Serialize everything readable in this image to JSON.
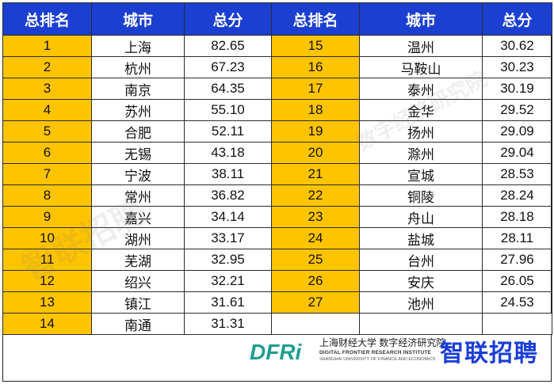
{
  "headers": [
    "总排名",
    "城市",
    "总分",
    "总排名",
    "城市",
    "总分"
  ],
  "left_rows": [
    {
      "rank": "1",
      "city": "上海",
      "score": "82.65"
    },
    {
      "rank": "2",
      "city": "杭州",
      "score": "67.23"
    },
    {
      "rank": "3",
      "city": "南京",
      "score": "64.35"
    },
    {
      "rank": "4",
      "city": "苏州",
      "score": "55.10"
    },
    {
      "rank": "5",
      "city": "合肥",
      "score": "52.11"
    },
    {
      "rank": "6",
      "city": "无锡",
      "score": "43.18"
    },
    {
      "rank": "7",
      "city": "宁波",
      "score": "38.11"
    },
    {
      "rank": "8",
      "city": "常州",
      "score": "36.82"
    },
    {
      "rank": "9",
      "city": "嘉兴",
      "score": "34.14"
    },
    {
      "rank": "10",
      "city": "湖州",
      "score": "33.17"
    },
    {
      "rank": "11",
      "city": "芜湖",
      "score": "32.95"
    },
    {
      "rank": "12",
      "city": "绍兴",
      "score": "32.21"
    },
    {
      "rank": "13",
      "city": "镇江",
      "score": "31.61"
    },
    {
      "rank": "14",
      "city": "南通",
      "score": "31.31"
    }
  ],
  "right_rows": [
    {
      "rank": "15",
      "city": "温州",
      "score": "30.62"
    },
    {
      "rank": "16",
      "city": "马鞍山",
      "score": "30.23"
    },
    {
      "rank": "17",
      "city": "泰州",
      "score": "30.19"
    },
    {
      "rank": "18",
      "city": "金华",
      "score": "29.52"
    },
    {
      "rank": "19",
      "city": "扬州",
      "score": "29.09"
    },
    {
      "rank": "20",
      "city": "滁州",
      "score": "29.04"
    },
    {
      "rank": "21",
      "city": "宣城",
      "score": "28.53"
    },
    {
      "rank": "22",
      "city": "铜陵",
      "score": "28.24"
    },
    {
      "rank": "23",
      "city": "舟山",
      "score": "28.18"
    },
    {
      "rank": "24",
      "city": "盐城",
      "score": "28.11"
    },
    {
      "rank": "25",
      "city": "台州",
      "score": "27.96"
    },
    {
      "rank": "26",
      "city": "安庆",
      "score": "26.05"
    },
    {
      "rank": "27",
      "city": "池州",
      "score": "24.53"
    }
  ],
  "footer": {
    "dfri_logo": "DFRi",
    "institute_cn": "上海财经大学 数字经济研究院",
    "institute_en1": "DIGITAL FRONTIER RESEARCH INSTITUTE",
    "institute_en2": "SHANGHAI UNIVERSITY OF FINANCE AND ECONOMICS",
    "zhilian": "智联招聘"
  },
  "watermarks": [
    "智联招聘",
    "数字经济研究院"
  ],
  "colors": {
    "header_blue": "#1b3fd0",
    "rank_yellow": "#ffc400",
    "brand_blue": "#1a3ed8"
  }
}
